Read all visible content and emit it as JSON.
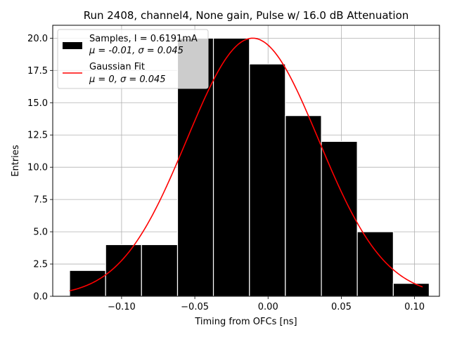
{
  "chart_data": {
    "type": "bar",
    "title": "Run 2408, channel4, None gain, Pulse w/ 16.0 dB Attenuation",
    "xlabel": "Timing from OFCs [ns]",
    "ylabel": "Entries",
    "xlim": [
      -0.147,
      0.117
    ],
    "ylim": [
      0,
      21
    ],
    "grid": true,
    "legend_position": "top-left",
    "xticks": [
      -0.1,
      -0.05,
      0.0,
      0.05,
      0.1
    ],
    "xtick_labels": [
      "−0.10",
      "−0.05",
      "0.00",
      "0.05",
      "0.10"
    ],
    "yticks": [
      0,
      2.5,
      5,
      7.5,
      10,
      12.5,
      15,
      17.5,
      20
    ],
    "ytick_labels": [
      "0.0",
      "2.5",
      "5.0",
      "7.5",
      "10.0",
      "12.5",
      "15.0",
      "17.5",
      "20.0"
    ],
    "histogram": {
      "name": "Samples, I = 0.6191mA",
      "stats_label": "μ = -0.01, σ = 0.045",
      "color": "#000000",
      "bin_edges": [
        -0.1355,
        -0.1109,
        -0.0864,
        -0.0618,
        -0.0373,
        -0.0127,
        0.0118,
        0.0364,
        0.0609,
        0.0855,
        0.11
      ],
      "counts": [
        2,
        4,
        4,
        20,
        20,
        18,
        14,
        12,
        5,
        1
      ]
    },
    "fit": {
      "name": "Gaussian Fit",
      "stats_label": "μ = 0, σ = 0.045",
      "color": "#ff0000",
      "mu": -0.0105,
      "sigma": 0.045,
      "amplitude": 20.0,
      "x_range": [
        -0.1355,
        0.1055
      ]
    }
  }
}
